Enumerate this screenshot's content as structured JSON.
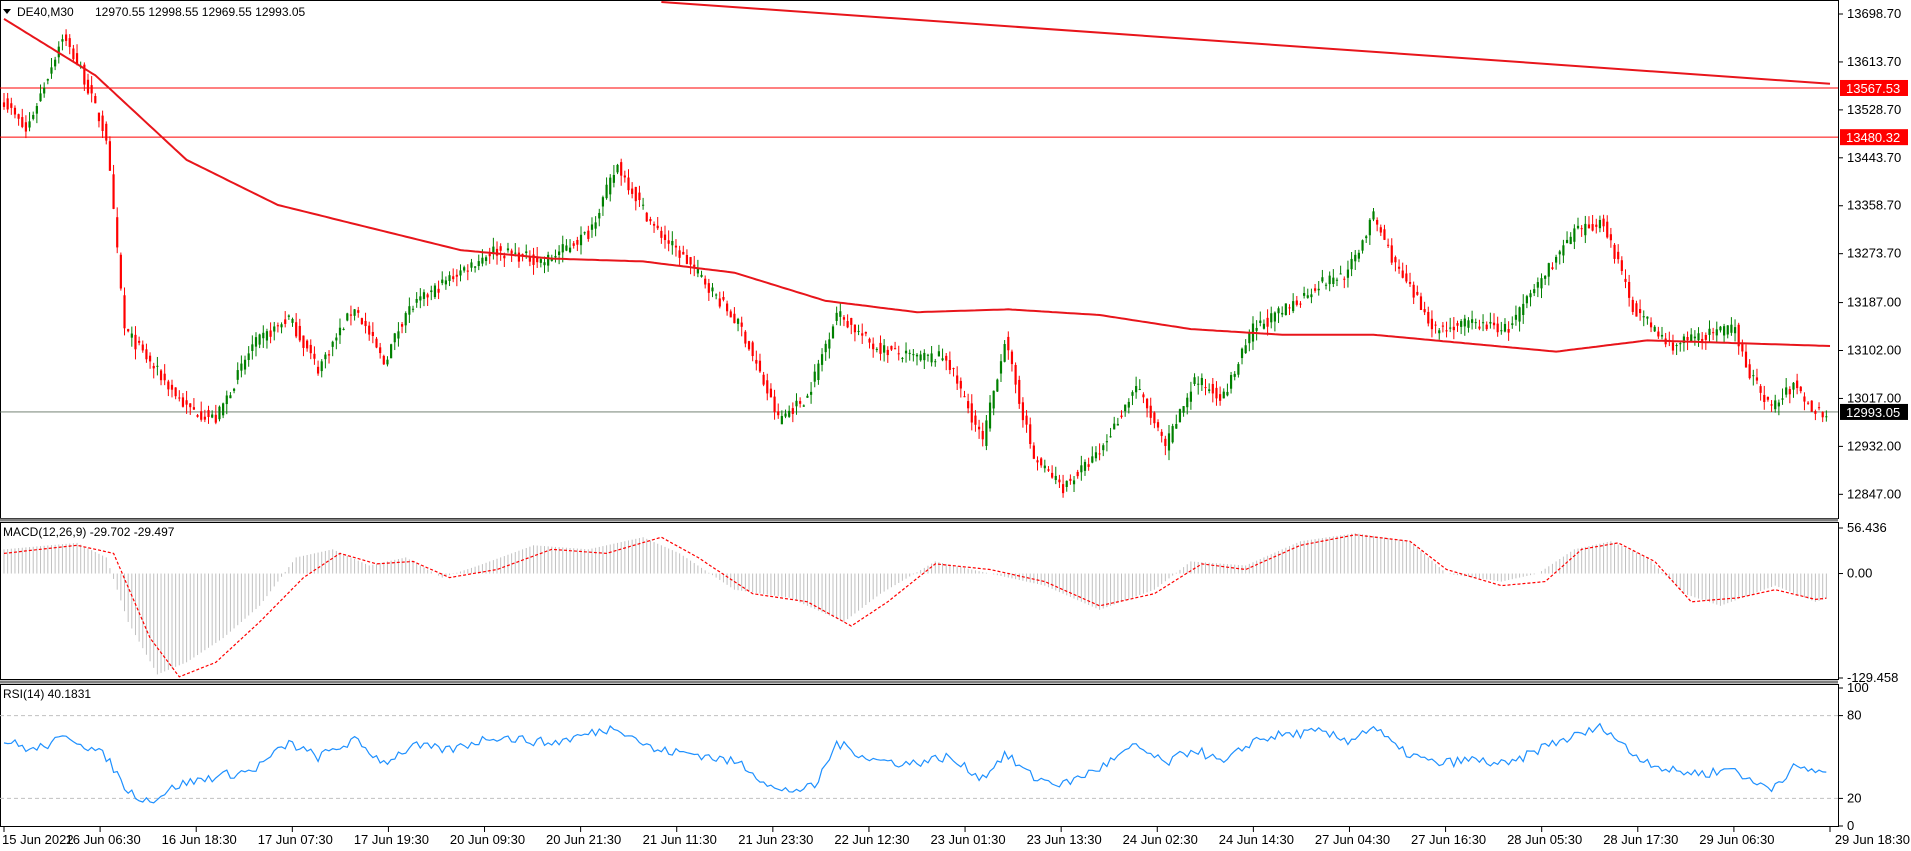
{
  "window": {
    "symbol": "DE40,M30",
    "ohlc": "12970.55 12998.55 12969.55 12993.05"
  },
  "colors": {
    "bull": "#008000",
    "bear": "#ff0000",
    "ma": "#e8151b",
    "level": "#ff0000",
    "current": "#000000",
    "macd_hist": "#c0c0c0",
    "macd_signal": "#ff0000",
    "rsi": "#1e90ff",
    "grid_dash": "#c0c0c0"
  },
  "chart_data": [
    {
      "type": "candlestick",
      "title": "DE40,M30",
      "ylim": [
        12805,
        13720
      ],
      "y_ticks": [
        "13698.70",
        "13613.70",
        "13528.70",
        "13443.70",
        "13358.70",
        "13273.70",
        "13187.00",
        "13102.00",
        "13017.00",
        "12932.00",
        "12847.00"
      ],
      "x_ticks": [
        "15 Jun 2022",
        "16 Jun 06:30",
        "16 Jun 18:30",
        "17 Jun 07:30",
        "17 Jun 19:30",
        "20 Jun 09:30",
        "20 Jun 21:30",
        "21 Jun 11:30",
        "21 Jun 23:30",
        "22 Jun 12:30",
        "23 Jun 01:30",
        "23 Jun 13:30",
        "24 Jun 02:30",
        "24 Jun 14:30",
        "27 Jun 04:30",
        "27 Jun 16:30",
        "28 Jun 05:30",
        "28 Jun 17:30",
        "29 Jun 06:30",
        "29 Jun 18:30"
      ],
      "close_anchors": [
        [
          0,
          13545
        ],
        [
          6,
          13490
        ],
        [
          12,
          13590
        ],
        [
          16,
          13660
        ],
        [
          21,
          13600
        ],
        [
          28,
          13480
        ],
        [
          33,
          13140
        ],
        [
          40,
          13080
        ],
        [
          50,
          13000
        ],
        [
          58,
          12980
        ],
        [
          68,
          13110
        ],
        [
          78,
          13160
        ],
        [
          86,
          13070
        ],
        [
          96,
          13180
        ],
        [
          104,
          13080
        ],
        [
          110,
          13170
        ],
        [
          122,
          13230
        ],
        [
          134,
          13280
        ],
        [
          148,
          13260
        ],
        [
          160,
          13310
        ],
        [
          168,
          13430
        ],
        [
          178,
          13320
        ],
        [
          190,
          13240
        ],
        [
          202,
          13140
        ],
        [
          212,
          12980
        ],
        [
          220,
          13020
        ],
        [
          228,
          13170
        ],
        [
          238,
          13110
        ],
        [
          248,
          13090
        ],
        [
          258,
          13090
        ],
        [
          268,
          12940
        ],
        [
          274,
          13120
        ],
        [
          282,
          12910
        ],
        [
          290,
          12860
        ],
        [
          300,
          12920
        ],
        [
          310,
          13040
        ],
        [
          318,
          12930
        ],
        [
          326,
          13050
        ],
        [
          334,
          13020
        ],
        [
          342,
          13140
        ],
        [
          350,
          13170
        ],
        [
          360,
          13220
        ],
        [
          368,
          13240
        ],
        [
          375,
          13340
        ],
        [
          382,
          13240
        ],
        [
          392,
          13140
        ],
        [
          402,
          13150
        ],
        [
          412,
          13140
        ],
        [
          422,
          13240
        ],
        [
          430,
          13310
        ],
        [
          438,
          13330
        ],
        [
          446,
          13180
        ],
        [
          456,
          13110
        ],
        [
          466,
          13130
        ],
        [
          474,
          13140
        ],
        [
          478,
          13060
        ],
        [
          484,
          13000
        ],
        [
          490,
          13040
        ],
        [
          496,
          12993
        ]
      ],
      "ma_anchors": [
        [
          0,
          13690
        ],
        [
          25,
          13590
        ],
        [
          50,
          13440
        ],
        [
          75,
          13360
        ],
        [
          100,
          13320
        ],
        [
          125,
          13280
        ],
        [
          150,
          13265
        ],
        [
          175,
          13260
        ],
        [
          200,
          13240
        ],
        [
          225,
          13190
        ],
        [
          250,
          13170
        ],
        [
          275,
          13175
        ],
        [
          300,
          13165
        ],
        [
          325,
          13140
        ],
        [
          350,
          13130
        ],
        [
          375,
          13130
        ],
        [
          400,
          13115
        ],
        [
          425,
          13100
        ],
        [
          450,
          13120
        ],
        [
          475,
          13115
        ],
        [
          500,
          13110
        ]
      ],
      "trendline": [
        [
          180,
          13720
        ],
        [
          500,
          13575
        ]
      ],
      "levels": [
        {
          "label": "13567.53",
          "value": 13567.53
        },
        {
          "label": "13480.32",
          "value": 13480.32
        }
      ],
      "current_price": {
        "label": "12993.05",
        "value": 12993.05
      }
    },
    {
      "type": "macd",
      "title": "MACD(12,26,9) -29.702 -29.497",
      "ylim": [
        -129.458,
        56.436
      ],
      "y_ticks": [
        "56.436",
        "0.00",
        "-129.458"
      ],
      "hist_anchors": [
        [
          0,
          30
        ],
        [
          20,
          38
        ],
        [
          28,
          20
        ],
        [
          34,
          -60
        ],
        [
          42,
          -125
        ],
        [
          50,
          -110
        ],
        [
          60,
          -80
        ],
        [
          70,
          -40
        ],
        [
          80,
          20
        ],
        [
          90,
          30
        ],
        [
          100,
          10
        ],
        [
          110,
          20
        ],
        [
          120,
          -5
        ],
        [
          130,
          10
        ],
        [
          145,
          35
        ],
        [
          160,
          30
        ],
        [
          175,
          45
        ],
        [
          185,
          25
        ],
        [
          200,
          -20
        ],
        [
          215,
          -30
        ],
        [
          230,
          -60
        ],
        [
          240,
          -25
        ],
        [
          255,
          15
        ],
        [
          270,
          0
        ],
        [
          285,
          -15
        ],
        [
          300,
          -45
        ],
        [
          315,
          -20
        ],
        [
          325,
          15
        ],
        [
          340,
          10
        ],
        [
          355,
          40
        ],
        [
          370,
          50
        ],
        [
          385,
          40
        ],
        [
          395,
          0
        ],
        [
          410,
          -10
        ],
        [
          420,
          0
        ],
        [
          430,
          30
        ],
        [
          440,
          40
        ],
        [
          450,
          20
        ],
        [
          460,
          -25
        ],
        [
          470,
          -40
        ],
        [
          485,
          -15
        ],
        [
          496,
          -35
        ],
        [
          500,
          -30
        ]
      ],
      "signal_anchors": [
        [
          0,
          25
        ],
        [
          20,
          35
        ],
        [
          30,
          25
        ],
        [
          40,
          -80
        ],
        [
          48,
          -128
        ],
        [
          58,
          -110
        ],
        [
          70,
          -60
        ],
        [
          82,
          -5
        ],
        [
          92,
          25
        ],
        [
          102,
          12
        ],
        [
          112,
          15
        ],
        [
          122,
          -5
        ],
        [
          135,
          5
        ],
        [
          150,
          30
        ],
        [
          165,
          25
        ],
        [
          180,
          45
        ],
        [
          190,
          20
        ],
        [
          205,
          -25
        ],
        [
          220,
          -35
        ],
        [
          232,
          -65
        ],
        [
          242,
          -35
        ],
        [
          255,
          12
        ],
        [
          270,
          5
        ],
        [
          285,
          -10
        ],
        [
          300,
          -40
        ],
        [
          315,
          -25
        ],
        [
          328,
          12
        ],
        [
          340,
          5
        ],
        [
          355,
          35
        ],
        [
          370,
          48
        ],
        [
          385,
          40
        ],
        [
          395,
          5
        ],
        [
          410,
          -15
        ],
        [
          422,
          -10
        ],
        [
          432,
          30
        ],
        [
          442,
          38
        ],
        [
          452,
          15
        ],
        [
          462,
          -35
        ],
        [
          475,
          -30
        ],
        [
          485,
          -20
        ],
        [
          496,
          -32
        ],
        [
          500,
          -30
        ]
      ]
    },
    {
      "type": "line",
      "title": "RSI(14) 40.1831",
      "ylim": [
        0,
        100
      ],
      "y_ticks": [
        "100",
        "80",
        "20",
        "0"
      ],
      "levels": [
        80,
        20
      ],
      "values_anchors": [
        [
          0,
          62
        ],
        [
          8,
          55
        ],
        [
          18,
          65
        ],
        [
          28,
          50
        ],
        [
          34,
          25
        ],
        [
          40,
          18
        ],
        [
          48,
          30
        ],
        [
          58,
          36
        ],
        [
          68,
          40
        ],
        [
          78,
          60
        ],
        [
          86,
          50
        ],
        [
          96,
          62
        ],
        [
          104,
          46
        ],
        [
          112,
          58
        ],
        [
          122,
          55
        ],
        [
          134,
          65
        ],
        [
          150,
          60
        ],
        [
          168,
          72
        ],
        [
          178,
          55
        ],
        [
          190,
          52
        ],
        [
          202,
          45
        ],
        [
          212,
          25
        ],
        [
          222,
          28
        ],
        [
          228,
          60
        ],
        [
          238,
          48
        ],
        [
          248,
          45
        ],
        [
          258,
          50
        ],
        [
          268,
          35
        ],
        [
          274,
          52
        ],
        [
          282,
          35
        ],
        [
          290,
          30
        ],
        [
          300,
          42
        ],
        [
          310,
          58
        ],
        [
          318,
          45
        ],
        [
          326,
          56
        ],
        [
          334,
          45
        ],
        [
          342,
          62
        ],
        [
          350,
          66
        ],
        [
          360,
          68
        ],
        [
          368,
          62
        ],
        [
          375,
          72
        ],
        [
          382,
          55
        ],
        [
          392,
          45
        ],
        [
          402,
          48
        ],
        [
          412,
          44
        ],
        [
          422,
          58
        ],
        [
          430,
          65
        ],
        [
          438,
          72
        ],
        [
          446,
          52
        ],
        [
          456,
          40
        ],
        [
          466,
          38
        ],
        [
          474,
          42
        ],
        [
          478,
          32
        ],
        [
          484,
          28
        ],
        [
          490,
          42
        ],
        [
          496,
          40
        ]
      ]
    }
  ]
}
